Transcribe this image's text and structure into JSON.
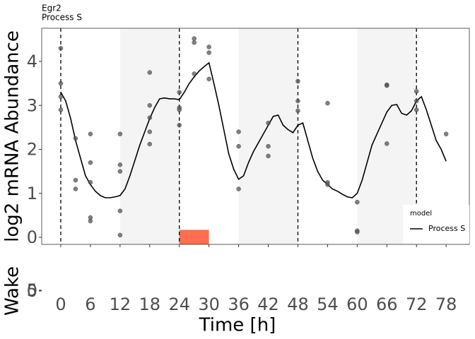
{
  "chart_data": {
    "type": "line",
    "title": "Egr2",
    "subtitle": "Process S",
    "xlabel": "Time [h]",
    "ylabel": "log2 mRNA Abundance",
    "xlim": [
      -3.86,
      82.7
    ],
    "ylim": [
      -0.16,
      4.755
    ],
    "xticks": [
      0,
      6,
      12,
      18,
      24,
      30,
      36,
      42,
      48,
      54,
      60,
      66,
      72,
      78
    ],
    "yticks": [
      0,
      1,
      2,
      3,
      4
    ],
    "legend_title": "model",
    "legend_position": "bottom-right",
    "shaded_bands": [
      [
        12,
        24
      ],
      [
        36,
        48
      ],
      [
        60,
        72
      ]
    ],
    "band_color": "#f4f4f4",
    "dashed_lines": [
      0,
      24,
      48,
      72
    ],
    "highlight": {
      "x": [
        24,
        30
      ],
      "top": 0.17,
      "color": "#ff6f4f"
    },
    "x": [
      0,
      1,
      2,
      3,
      4,
      5,
      6,
      7,
      8,
      9,
      10,
      11,
      12,
      13,
      14,
      15,
      16,
      17,
      18,
      19,
      20,
      21,
      22,
      23,
      24,
      25,
      26,
      27,
      28,
      29,
      30,
      31,
      32,
      33,
      34,
      35,
      36,
      37,
      38,
      39,
      40,
      41,
      42,
      43,
      44,
      45,
      46,
      47,
      48,
      49,
      50,
      51,
      52,
      53,
      54,
      55,
      56,
      57,
      58,
      59,
      60,
      61,
      62,
      63,
      64,
      65,
      66,
      67,
      68,
      69,
      70,
      71,
      72,
      73,
      74,
      75,
      76,
      77,
      78
    ],
    "series": [
      {
        "name": "Process S",
        "color": "#000000",
        "values": [
          3.3,
          3.1,
          2.7,
          2.2,
          1.8,
          1.4,
          1.2,
          1.05,
          0.95,
          0.9,
          0.9,
          0.92,
          0.95,
          1.1,
          1.4,
          1.75,
          2.1,
          2.4,
          2.7,
          2.95,
          3.15,
          3.17,
          3.15,
          3.15,
          3.13,
          3.3,
          3.5,
          3.65,
          3.78,
          3.88,
          3.97,
          3.5,
          3.0,
          2.45,
          1.9,
          1.55,
          1.32,
          1.4,
          1.7,
          1.95,
          2.15,
          2.35,
          2.55,
          2.75,
          2.78,
          2.55,
          2.45,
          2.38,
          2.55,
          2.6,
          2.2,
          1.8,
          1.5,
          1.3,
          1.2,
          1.1,
          1.05,
          0.98,
          0.92,
          0.9,
          1.0,
          1.3,
          1.7,
          2.1,
          2.35,
          2.6,
          2.85,
          3.0,
          3.02,
          2.82,
          2.78,
          2.88,
          3.1,
          3.2,
          2.9,
          2.55,
          2.2,
          2.0,
          1.73
        ]
      }
    ],
    "points": {
      "color": "#555555",
      "x": [
        0,
        0,
        0,
        0,
        3,
        3,
        3,
        6,
        6,
        6,
        6,
        6,
        12,
        12,
        12,
        12,
        12,
        18,
        18,
        18,
        18,
        18,
        24,
        24,
        24,
        24,
        27,
        27,
        27,
        30,
        30,
        30,
        36,
        36,
        36,
        42,
        42,
        42,
        48,
        48,
        48,
        54,
        54,
        54,
        60,
        60,
        60,
        66,
        66,
        66,
        72,
        72,
        72,
        78
      ],
      "y": [
        4.3,
        3.5,
        3.2,
        2.9,
        2.25,
        1.3,
        1.1,
        2.35,
        1.7,
        1.25,
        0.45,
        0.37,
        2.35,
        1.65,
        1.5,
        0.6,
        0.05,
        3.75,
        3.0,
        2.72,
        2.4,
        2.12,
        3.3,
        2.95,
        2.9,
        2.55,
        4.52,
        4.43,
        3.72,
        4.33,
        4.2,
        3.6,
        2.4,
        2.07,
        1.1,
        2.6,
        2.07,
        1.85,
        3.55,
        3.1,
        2.88,
        3.05,
        1.25,
        1.2,
        0.8,
        0.15,
        0.12,
        3.47,
        3.45,
        2.13,
        3.32,
        3.1,
        2.9,
        2.35
      ]
    },
    "wake_panel": {
      "ylabel": "Wake",
      "ylim": [
        0,
        5
      ],
      "yticks": [
        5,
        0
      ]
    }
  }
}
